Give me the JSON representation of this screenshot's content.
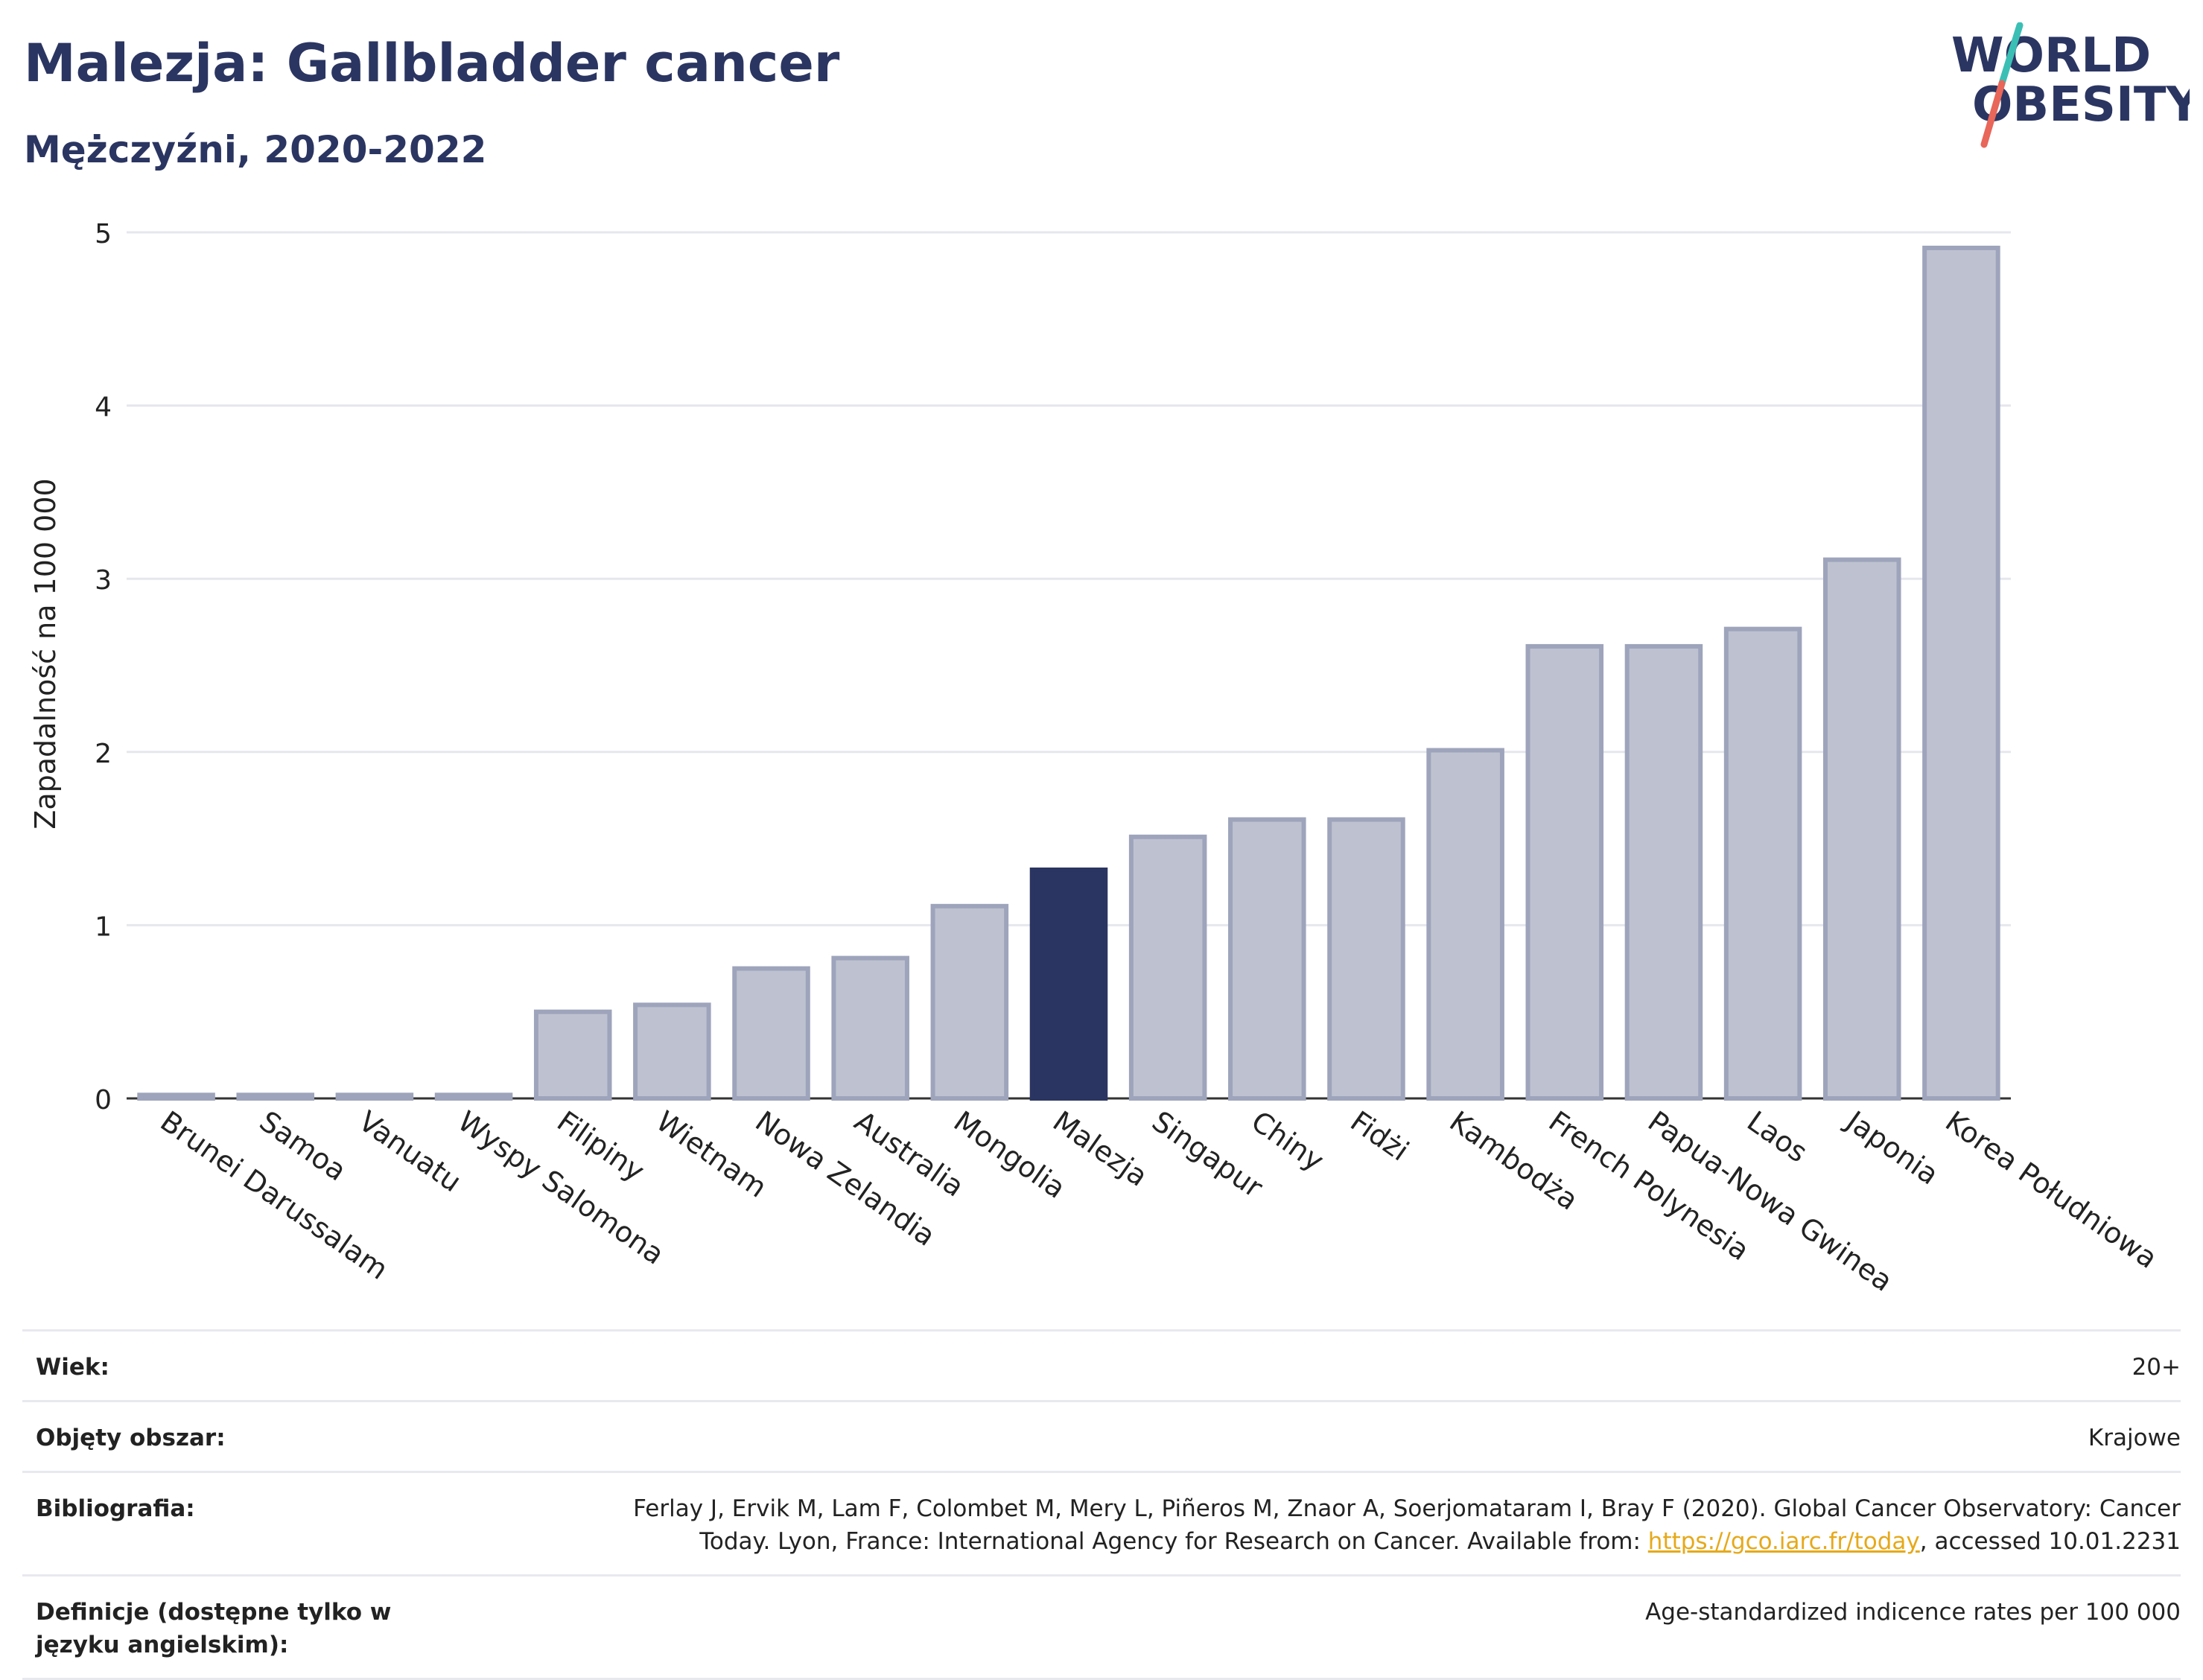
{
  "header": {
    "title": "Malezja: Gallbladder cancer",
    "subtitle": "Mężczyźni, 2020-2022"
  },
  "logo": {
    "line1": "WORLD",
    "line2": "OBESITY"
  },
  "colors": {
    "bar": "#bec2d0",
    "bar_stroke": "#9ea4bb",
    "highlight": "#2b3561",
    "grid": "#e6e7ed",
    "accent_red": "#e8665a",
    "accent_teal": "#3bbfb5"
  },
  "chart_data": {
    "type": "bar",
    "ylabel": "Zapadalność na 100 000",
    "ylim": [
      0,
      5
    ],
    "yticks": [
      "0",
      "1",
      "2",
      "3",
      "4",
      "5"
    ],
    "highlight": "Malezja",
    "categories": [
      "Brunei Darussalam",
      "Samoa",
      "Vanuatu",
      "Wyspy Salomona",
      "Filipiny",
      "Wietnam",
      "Nowa Zelandia",
      "Australia",
      "Mongolia",
      "Malezja",
      "Singapur",
      "Chiny",
      "Fidżi",
      "Kambodża",
      "French Polynesia",
      "Papua-Nowa Gwinea",
      "Laos",
      "Japonia",
      "Korea Południowa"
    ],
    "values": [
      0.02,
      0.02,
      0.02,
      0.02,
      0.5,
      0.54,
      0.75,
      0.81,
      1.11,
      1.32,
      1.51,
      1.61,
      1.61,
      2.01,
      2.61,
      2.61,
      2.71,
      3.11,
      4.91
    ]
  },
  "info": {
    "age_label": "Wiek:",
    "age_value": "20+",
    "area_label": "Objęty obszar:",
    "area_value": "Krajowe",
    "bib_label": "Bibliografia:",
    "bib_line1": "Ferlay J, Ervik M, Lam F, Colombet M, Mery L, Piñeros M, Znaor A, Soerjomataram I, Bray F (2020). Global Cancer Observatory: Cancer",
    "bib_line2_pre": "Today. Lyon, France: International Agency for Research on Cancer. Available from: ",
    "bib_link": "https://gco.iarc.fr/today",
    "bib_line2_post": ", accessed 10.01.2231",
    "def_label": "Definicje (dostępne tylko w języku angielskim):",
    "def_value": "Age-standardized indicence rates per 100 000"
  }
}
